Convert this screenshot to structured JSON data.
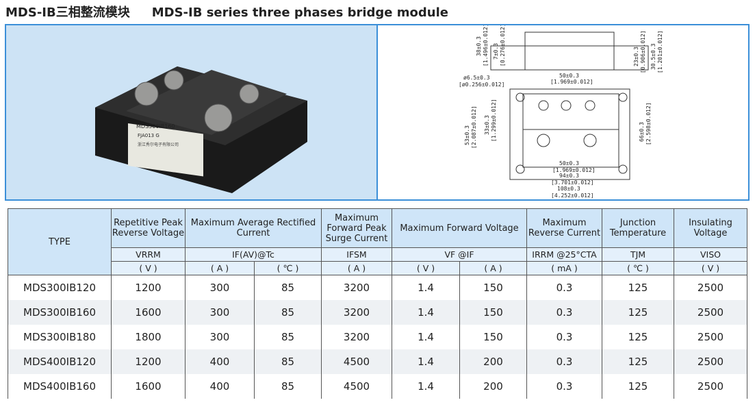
{
  "title": {
    "cn": "MDS-IB三相整流模块",
    "en": "MDS-IB series three phases bridge module"
  },
  "photo": {
    "label_line1": "MDS300IB160",
    "label_line2": "FJA013 G",
    "label_line3": "浙江秀尔电子有限公司"
  },
  "drawing": {
    "dims": [
      "38±0.3",
      "[1.496±0.012]",
      "7±0.3",
      "[0.276±0.012]",
      "23±0.3",
      "[0.906±0.012]",
      "30.5±0.3",
      "[1.201±0.012]",
      "ø6.5±0.3",
      "[ø0.256±0.012]",
      "50±0.3",
      "[1.969±0.012]",
      "53±0.3",
      "[2.087±0.012]",
      "33±0.3",
      "[1.299±0.012]",
      "66±0.3",
      "[2.598±0.012]",
      "50±0.3",
      "[1.969±0.012]",
      "94±0.3",
      "[3.701±0.012]",
      "108±0.3",
      "[4.252±0.012]"
    ]
  },
  "table": {
    "header": {
      "type": "TYPE",
      "vrrm": "Repetitive Peak Reverse Voltage",
      "ifav": "Maximum Average Rectified Current",
      "ifsm": "Maximum Forward Peak Surge Current",
      "vf": "Maximum Forward Voltage",
      "irrm": "Maximum Reverse Current",
      "tjm": "Junction Temperature",
      "viso": "Insulating Voltage"
    },
    "symbols": {
      "vrrm": "VRRM",
      "ifav": "IF(AV)@Tc",
      "ifsm": "IFSM",
      "vf": "VF @IF",
      "irrm": "IRRM @25°CTA",
      "tjm": "TJM",
      "viso": "VISO"
    },
    "units": [
      "( V )",
      "( A )",
      "( ℃ )",
      "( A )",
      "( V )",
      "( A )",
      "( mA )",
      "( ℃ )",
      "( V )"
    ],
    "rows": [
      [
        "MDS300IB120",
        "1200",
        "300",
        "85",
        "3200",
        "1.4",
        "150",
        "0.3",
        "125",
        "2500"
      ],
      [
        "MDS300IB160",
        "1600",
        "300",
        "85",
        "3200",
        "1.4",
        "150",
        "0.3",
        "125",
        "2500"
      ],
      [
        "MDS300IB180",
        "1800",
        "300",
        "85",
        "3200",
        "1.4",
        "150",
        "0.3",
        "125",
        "2500"
      ],
      [
        "MDS400IB120",
        "1200",
        "400",
        "85",
        "4500",
        "1.4",
        "200",
        "0.3",
        "125",
        "2500"
      ],
      [
        "MDS400IB160",
        "1600",
        "400",
        "85",
        "4500",
        "1.4",
        "200",
        "0.3",
        "125",
        "2500"
      ]
    ]
  },
  "colors": {
    "border": "#3b8fd8",
    "header_bg": "#cfe5f8",
    "stripe": "#eef1f4"
  }
}
